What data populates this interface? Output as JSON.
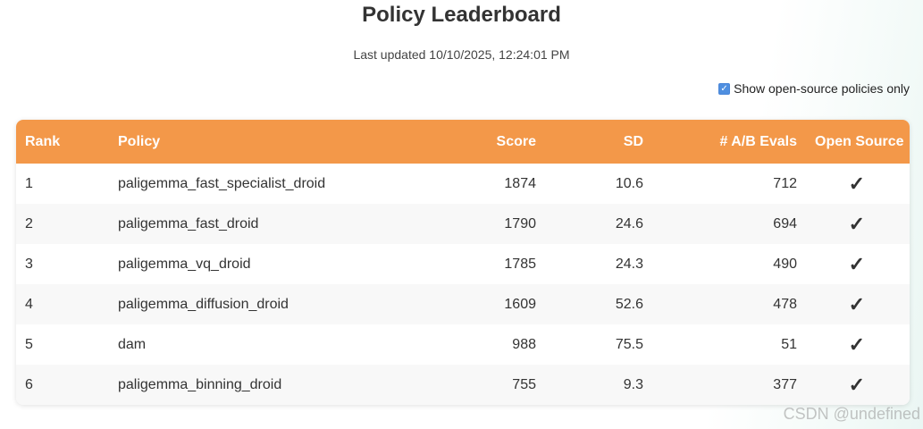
{
  "page": {
    "title": "Policy Leaderboard",
    "last_updated": "Last updated 10/10/2025, 12:24:01 PM"
  },
  "filter": {
    "label": "Show open-source policies only",
    "checked": true
  },
  "table": {
    "headers": {
      "rank": "Rank",
      "policy": "Policy",
      "score": "Score",
      "sd": "SD",
      "evals": "# A/B Evals",
      "open_source": "Open Source"
    },
    "rows": [
      {
        "rank": "1",
        "policy": "paligemma_fast_specialist_droid",
        "score": "1874",
        "sd": "10.6",
        "evals": "712",
        "open_source": "✓"
      },
      {
        "rank": "2",
        "policy": "paligemma_fast_droid",
        "score": "1790",
        "sd": "24.6",
        "evals": "694",
        "open_source": "✓"
      },
      {
        "rank": "3",
        "policy": "paligemma_vq_droid",
        "score": "1785",
        "sd": "24.3",
        "evals": "490",
        "open_source": "✓"
      },
      {
        "rank": "4",
        "policy": "paligemma_diffusion_droid",
        "score": "1609",
        "sd": "52.6",
        "evals": "478",
        "open_source": "✓"
      },
      {
        "rank": "5",
        "policy": "dam",
        "score": "988",
        "sd": "75.5",
        "evals": "51",
        "open_source": "✓"
      },
      {
        "rank": "6",
        "policy": "paligemma_binning_droid",
        "score": "755",
        "sd": "9.3",
        "evals": "377",
        "open_source": "✓"
      }
    ]
  },
  "colors": {
    "header_bg": "#f39849",
    "accent_checkbox": "#4f8fe0"
  },
  "watermark": "CSDN @undefined"
}
